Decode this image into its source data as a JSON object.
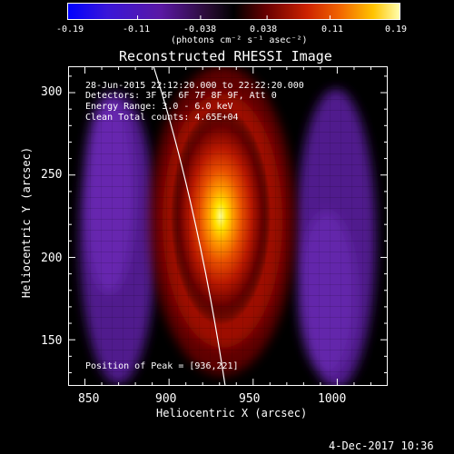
{
  "colorbar": {
    "tick_labels": [
      "-0.19",
      "-0.11",
      "-0.038",
      "0.038",
      "0.11",
      "0.19"
    ],
    "units_label": "(photons cm⁻² s⁻¹ asec⁻²)",
    "range": [
      -0.19,
      0.19
    ]
  },
  "plot": {
    "title": "Reconstructed RHESSI Image",
    "info_lines": [
      "28-Jun-2015 22:12:20.000 to 22:22:20.000",
      "Detectors: 3F 5F 6F 7F 8F 9F, Att 0",
      "Energy Range: 3.0 - 6.0 keV",
      "Clean    Total counts: 4.65E+04"
    ],
    "peak_text": "Position of Peak = [936,221]",
    "xlabel": "Heliocentric X (arcsec)",
    "ylabel": "Heliocentric Y (arcsec)",
    "x_ticks": [
      "850",
      "900",
      "950",
      "1000"
    ],
    "y_ticks": [
      "150",
      "200",
      "250",
      "300"
    ],
    "xlim": [
      840,
      1030
    ],
    "ylim": [
      122,
      316
    ],
    "peak": {
      "x": 936,
      "y": 221
    }
  },
  "footer": {
    "timestamp": "4-Dec-2017 10:36"
  }
}
